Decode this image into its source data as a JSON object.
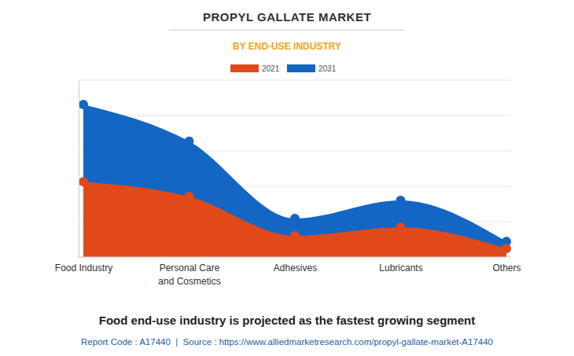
{
  "chart_data": {
    "type": "area",
    "title": "PROPYL GALLATE MARKET",
    "subtitle": "BY END-USE INDUSTRY",
    "caption": "Food end-use industry is projected as the fastest growing segment",
    "footer": "Report Code : A17440  |  Source : https://www.alliedmarketresearch.com/propyl-gallate-market-A17440",
    "categories": [
      "Food Industry",
      "Personal Care and Cosmetics",
      "Adhesives",
      "Lubricants",
      "Others"
    ],
    "series": [
      {
        "name": "2021",
        "color": "#e2491a",
        "values": [
          2.13,
          1.71,
          0.6,
          0.84,
          0.24
        ]
      },
      {
        "name": "2031",
        "color": "#1466c5",
        "values": [
          4.31,
          3.27,
          1.09,
          1.6,
          0.44
        ]
      }
    ],
    "ylim": [
      0,
      5
    ],
    "yticks": [
      0,
      1,
      2,
      3,
      4,
      5
    ],
    "grid": true,
    "legend": "top",
    "tick_labels": "x",
    "marker": "circle",
    "stacked": false
  }
}
